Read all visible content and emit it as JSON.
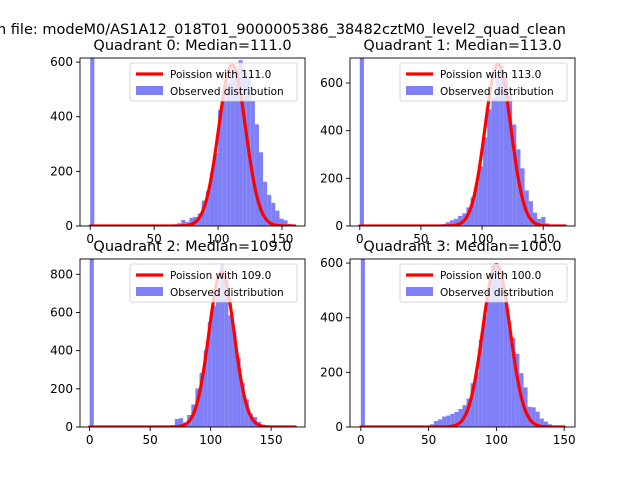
{
  "figure": {
    "suptitle": "n file: modeM0/AS1A12_018T01_9000005386_38482cztM0_level2_quad_clean"
  },
  "colors": {
    "bar": "#7f7ff8",
    "poisson": "#ff0000",
    "axis": "#000000",
    "background": "#ffffff"
  },
  "chart_data": [
    {
      "type": "bar",
      "title": "Quadrant 0: Median=111.0",
      "median": 111.0,
      "xlim": [
        -8,
        168
      ],
      "ylim": [
        0,
        615
      ],
      "xticks": [
        0,
        50,
        100,
        150
      ],
      "yticks": [
        0,
        200,
        400,
        600
      ],
      "bin_width": 3.2,
      "legend": {
        "position": "upper right",
        "entries": [
          "Poission with 111.0",
          "Observed distribution"
        ]
      },
      "series": [
        {
          "name": "Observed distribution",
          "kind": "histogram",
          "x": [
            0,
            61.6,
            64.8,
            68.0,
            71.2,
            74.4,
            77.6,
            80.8,
            84.0,
            87.2,
            90.4,
            93.6,
            96.8,
            100.0,
            103.2,
            106.4,
            109.6,
            112.8,
            116.0,
            119.2,
            122.4,
            125.6,
            128.8,
            132.0,
            135.2,
            138.4,
            141.6,
            144.8,
            148.0,
            151.2,
            154.4,
            157.6
          ],
          "values": [
            615,
            3,
            6,
            10,
            22,
            15,
            30,
            33,
            46,
            93,
            127,
            196,
            267,
            426,
            471,
            524,
            572,
            575,
            607,
            569,
            550,
            458,
            372,
            270,
            162,
            114,
            85,
            56,
            27,
            21,
            8,
            4
          ]
        },
        {
          "name": "Poission with 111.0",
          "kind": "curve",
          "lambda": 111.0,
          "peak": 590,
          "x_range": [
            0,
            160
          ]
        }
      ]
    },
    {
      "type": "bar",
      "title": "Quadrant 1: Median=113.0",
      "median": 113.0,
      "xlim": [
        -8,
        176
      ],
      "ylim": [
        0,
        705
      ],
      "xticks": [
        0,
        50,
        100,
        150
      ],
      "yticks": [
        0,
        200,
        400,
        600
      ],
      "bin_width": 3.4,
      "legend": {
        "position": "upper right",
        "entries": [
          "Poission with 113.0",
          "Observed distribution"
        ]
      },
      "series": [
        {
          "name": "Observed distribution",
          "kind": "histogram",
          "x": [
            0,
            60.0,
            63.4,
            66.8,
            70.2,
            73.6,
            77.0,
            80.4,
            83.8,
            87.2,
            90.6,
            94.0,
            97.4,
            100.8,
            104.2,
            107.6,
            111.0,
            114.4,
            117.8,
            121.2,
            124.6,
            128.0,
            131.4,
            134.8,
            138.2,
            141.6,
            145.0,
            148.4,
            151.8,
            155.2,
            158.6
          ],
          "values": [
            705,
            3,
            5,
            8,
            16,
            24,
            30,
            42,
            53,
            78,
            120,
            180,
            250,
            373,
            489,
            540,
            640,
            673,
            622,
            551,
            426,
            322,
            242,
            149,
            104,
            56,
            30,
            38,
            11,
            5,
            3
          ]
        },
        {
          "name": "Poission with 113.0",
          "kind": "curve",
          "lambda": 113.0,
          "peak": 678,
          "x_range": [
            0,
            168
          ]
        }
      ]
    },
    {
      "type": "bar",
      "title": "Quadrant 2: Median=109.0",
      "median": 109.0,
      "xlim": [
        -8,
        178
      ],
      "ylim": [
        0,
        880
      ],
      "xticks": [
        0,
        50,
        100,
        150
      ],
      "yticks": [
        0,
        200,
        400,
        600,
        800
      ],
      "bin_width": 3.4,
      "legend": {
        "position": "upper right",
        "entries": [
          "Poission with 109.0",
          "Observed distribution"
        ]
      },
      "series": [
        {
          "name": "Observed distribution",
          "kind": "histogram",
          "x": [
            0,
            67.0,
            70.4,
            73.8,
            77.2,
            80.6,
            84.0,
            87.4,
            90.8,
            94.2,
            97.6,
            101.0,
            104.4,
            107.8,
            111.2,
            114.6,
            118.0,
            121.4,
            124.8,
            128.2,
            131.6,
            135.0,
            138.4,
            141.8,
            145.2
          ],
          "values": [
            880,
            10,
            42,
            46,
            25,
            63,
            118,
            202,
            283,
            402,
            550,
            634,
            723,
            855,
            770,
            585,
            500,
            362,
            230,
            145,
            70,
            52,
            27,
            10,
            6
          ]
        },
        {
          "name": "Poission with 109.0",
          "kind": "curve",
          "lambda": 109.0,
          "peak": 812,
          "x_range": [
            0,
            170
          ]
        }
      ]
    },
    {
      "type": "bar",
      "title": "Quadrant 3: Median=100.0",
      "median": 100.0,
      "xlim": [
        -8,
        158
      ],
      "ylim": [
        0,
        615
      ],
      "xticks": [
        0,
        50,
        100,
        150
      ],
      "yticks": [
        0,
        200,
        400,
        600
      ],
      "bin_width": 3.0,
      "legend": {
        "position": "upper right",
        "entries": [
          "Poission with 100.0",
          "Observed distribution"
        ]
      },
      "series": [
        {
          "name": "Observed distribution",
          "kind": "histogram",
          "x": [
            0,
            48.0,
            51.0,
            54.0,
            57.0,
            60.0,
            63.0,
            66.0,
            69.0,
            72.0,
            75.0,
            78.0,
            81.0,
            84.0,
            87.0,
            90.0,
            93.0,
            96.0,
            99.0,
            102.0,
            105.0,
            108.0,
            111.0,
            114.0,
            117.0,
            120.0,
            123.0,
            126.0,
            129.0,
            132.0,
            135.0,
            138.0,
            141.0
          ],
          "values": [
            615,
            3,
            10,
            22,
            28,
            38,
            42,
            48,
            55,
            66,
            80,
            104,
            160,
            200,
            320,
            410,
            496,
            590,
            595,
            543,
            462,
            386,
            326,
            268,
            197,
            145,
            74,
            72,
            56,
            31,
            20,
            10,
            4
          ]
        },
        {
          "name": "Poission with 100.0",
          "kind": "curve",
          "lambda": 100.0,
          "peak": 595,
          "x_range": [
            0,
            150
          ]
        }
      ]
    }
  ]
}
